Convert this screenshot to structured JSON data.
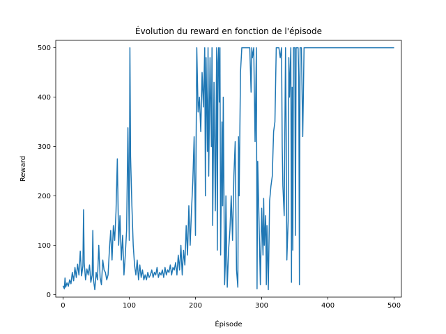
{
  "chart_data": {
    "type": "line",
    "title": "Évolution du reward en fonction de l'épisode",
    "xlabel": "Épisode",
    "ylabel": "Reward",
    "xlim": [
      -11,
      511
    ],
    "ylim": [
      -5,
      515
    ],
    "grid": false,
    "xticks": [
      0,
      100,
      200,
      300,
      400,
      500
    ],
    "yticks": [
      0,
      100,
      200,
      300,
      400,
      500
    ],
    "series": [
      {
        "name": "reward",
        "color": "#1f77b4",
        "points": [
          [
            0,
            18
          ],
          [
            2,
            12
          ],
          [
            3,
            34
          ],
          [
            4,
            15
          ],
          [
            6,
            24
          ],
          [
            8,
            17
          ],
          [
            10,
            30
          ],
          [
            12,
            22
          ],
          [
            14,
            45
          ],
          [
            16,
            28
          ],
          [
            18,
            55
          ],
          [
            20,
            35
          ],
          [
            22,
            62
          ],
          [
            24,
            40
          ],
          [
            26,
            88
          ],
          [
            28,
            38
          ],
          [
            30,
            58
          ],
          [
            31,
            172
          ],
          [
            32,
            65
          ],
          [
            34,
            30
          ],
          [
            36,
            52
          ],
          [
            38,
            40
          ],
          [
            40,
            60
          ],
          [
            42,
            25
          ],
          [
            44,
            40
          ],
          [
            45,
            130
          ],
          [
            46,
            30
          ],
          [
            48,
            10
          ],
          [
            50,
            45
          ],
          [
            52,
            30
          ],
          [
            54,
            100
          ],
          [
            56,
            35
          ],
          [
            58,
            20
          ],
          [
            60,
            70
          ],
          [
            62,
            50
          ],
          [
            64,
            45
          ],
          [
            66,
            30
          ],
          [
            68,
            40
          ],
          [
            70,
            90
          ],
          [
            72,
            130
          ],
          [
            74,
            70
          ],
          [
            76,
            140
          ],
          [
            78,
            110
          ],
          [
            80,
            168
          ],
          [
            82,
            275
          ],
          [
            84,
            100
          ],
          [
            86,
            160
          ],
          [
            88,
            70
          ],
          [
            90,
            120
          ],
          [
            92,
            40
          ],
          [
            94,
            80
          ],
          [
            96,
            130
          ],
          [
            98,
            338
          ],
          [
            100,
            110
          ],
          [
            101,
            500
          ],
          [
            102,
            280
          ],
          [
            104,
            180
          ],
          [
            106,
            100
          ],
          [
            108,
            60
          ],
          [
            110,
            40
          ],
          [
            112,
            70
          ],
          [
            114,
            30
          ],
          [
            116,
            60
          ],
          [
            118,
            35
          ],
          [
            120,
            50
          ],
          [
            122,
            30
          ],
          [
            124,
            40
          ],
          [
            126,
            30
          ],
          [
            128,
            45
          ],
          [
            130,
            35
          ],
          [
            132,
            40
          ],
          [
            134,
            50
          ],
          [
            136,
            35
          ],
          [
            138,
            45
          ],
          [
            140,
            40
          ],
          [
            142,
            55
          ],
          [
            144,
            35
          ],
          [
            146,
            45
          ],
          [
            148,
            40
          ],
          [
            150,
            50
          ],
          [
            152,
            35
          ],
          [
            154,
            55
          ],
          [
            156,
            40
          ],
          [
            158,
            50
          ],
          [
            160,
            45
          ],
          [
            162,
            60
          ],
          [
            164,
            40
          ],
          [
            166,
            55
          ],
          [
            168,
            50
          ],
          [
            170,
            65
          ],
          [
            172,
            40
          ],
          [
            174,
            80
          ],
          [
            176,
            50
          ],
          [
            178,
            100
          ],
          [
            180,
            40
          ],
          [
            182,
            90
          ],
          [
            184,
            60
          ],
          [
            186,
            140
          ],
          [
            188,
            80
          ],
          [
            190,
            180
          ],
          [
            192,
            100
          ],
          [
            194,
            170
          ],
          [
            196,
            230
          ],
          [
            198,
            320
          ],
          [
            200,
            120
          ],
          [
            202,
            500
          ],
          [
            204,
            370
          ],
          [
            206,
            400
          ],
          [
            208,
            330
          ],
          [
            210,
            450
          ],
          [
            212,
            380
          ],
          [
            214,
            500
          ],
          [
            215,
            200
          ],
          [
            216,
            480
          ],
          [
            218,
            290
          ],
          [
            219,
            500
          ],
          [
            220,
            240
          ],
          [
            222,
            480
          ],
          [
            224,
            300
          ],
          [
            225,
            500
          ],
          [
            226,
            140
          ],
          [
            228,
            430
          ],
          [
            230,
            170
          ],
          [
            232,
            500
          ],
          [
            233,
            90
          ],
          [
            234,
            470
          ],
          [
            235,
            500
          ],
          [
            236,
            390
          ],
          [
            237,
            500
          ],
          [
            238,
            80
          ],
          [
            240,
            350
          ],
          [
            241,
            180
          ],
          [
            242,
            400
          ],
          [
            244,
            20
          ],
          [
            245,
            60
          ],
          [
            246,
            200
          ],
          [
            247,
            100
          ],
          [
            248,
            15
          ],
          [
            250,
            90
          ],
          [
            252,
            130
          ],
          [
            254,
            200
          ],
          [
            256,
            110
          ],
          [
            258,
            240
          ],
          [
            260,
            310
          ],
          [
            262,
            50
          ],
          [
            264,
            15
          ],
          [
            265,
            320
          ],
          [
            266,
            200
          ],
          [
            268,
            450
          ],
          [
            270,
            500
          ],
          [
            272,
            500
          ],
          [
            274,
            500
          ],
          [
            276,
            500
          ],
          [
            278,
            500
          ],
          [
            280,
            500
          ],
          [
            282,
            500
          ],
          [
            284,
            410
          ],
          [
            285,
            500
          ],
          [
            286,
            480
          ],
          [
            288,
            500
          ],
          [
            290,
            310
          ],
          [
            292,
            500
          ],
          [
            293,
            12
          ],
          [
            294,
            270
          ],
          [
            296,
            150
          ],
          [
            298,
            20
          ],
          [
            300,
            175
          ],
          [
            302,
            80
          ],
          [
            303,
            195
          ],
          [
            304,
            100
          ],
          [
            306,
            160
          ],
          [
            307,
            20
          ],
          [
            308,
            140
          ],
          [
            310,
            10
          ],
          [
            312,
            190
          ],
          [
            314,
            220
          ],
          [
            316,
            240
          ],
          [
            318,
            330
          ],
          [
            320,
            350
          ],
          [
            322,
            500
          ],
          [
            324,
            500
          ],
          [
            326,
            500
          ],
          [
            328,
            480
          ],
          [
            330,
            500
          ],
          [
            331,
            300
          ],
          [
            332,
            220
          ],
          [
            334,
            160
          ],
          [
            336,
            500
          ],
          [
            337,
            330
          ],
          [
            338,
            70
          ],
          [
            340,
            150
          ],
          [
            341,
            480
          ],
          [
            342,
            400
          ],
          [
            344,
            500
          ],
          [
            345,
            25
          ],
          [
            346,
            420
          ],
          [
            347,
            90
          ],
          [
            348,
            500
          ],
          [
            350,
            500
          ],
          [
            351,
            120
          ],
          [
            352,
            500
          ],
          [
            354,
            500
          ],
          [
            355,
            500
          ],
          [
            356,
            440
          ],
          [
            357,
            20
          ],
          [
            358,
            500
          ],
          [
            360,
            500
          ],
          [
            362,
            320
          ],
          [
            364,
            500
          ],
          [
            366,
            500
          ],
          [
            368,
            500
          ],
          [
            370,
            500
          ],
          [
            372,
            500
          ],
          [
            374,
            500
          ],
          [
            376,
            500
          ],
          [
            378,
            500
          ],
          [
            380,
            500
          ],
          [
            382,
            500
          ],
          [
            384,
            500
          ],
          [
            386,
            500
          ],
          [
            388,
            500
          ],
          [
            390,
            500
          ],
          [
            400,
            500
          ],
          [
            420,
            500
          ],
          [
            440,
            500
          ],
          [
            460,
            500
          ],
          [
            480,
            500
          ],
          [
            500,
            500
          ]
        ]
      }
    ]
  }
}
